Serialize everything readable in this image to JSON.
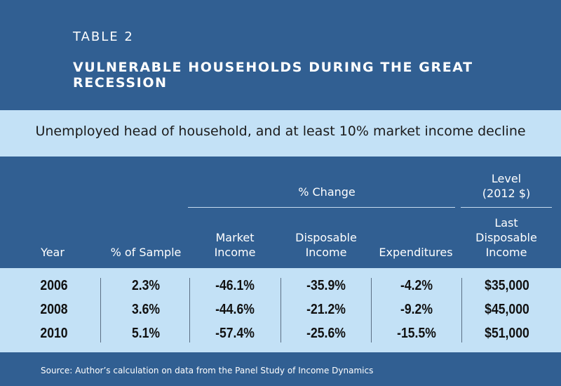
{
  "table": {
    "number": "TABLE 2",
    "title": "VULNERABLE HOUSEHOLDS DURING THE GREAT RECESSION",
    "subtitle": "Unemployed head of household, and at least 10% market income decline",
    "group_headers": {
      "pct_change": "% Change",
      "level_line1": "Level",
      "level_line2": "(2012 $)"
    },
    "columns": {
      "year": "Year",
      "pct_sample": "% of Sample",
      "market_income_1": "Market",
      "market_income_2": "Income",
      "disposable_income_1": "Disposable",
      "disposable_income_2": "Income",
      "expenditures": "Expenditures",
      "last_disp_1": "Last",
      "last_disp_2": "Disposable",
      "last_disp_3": "Income"
    },
    "rows": [
      {
        "year": "2006",
        "pct_sample": "2.3%",
        "market_income": "-46.1%",
        "disposable_income": "-35.9%",
        "expenditures": "-4.2%",
        "last_disposable_income": "$35,000"
      },
      {
        "year": "2008",
        "pct_sample": "3.6%",
        "market_income": "-44.6%",
        "disposable_income": "-21.2%",
        "expenditures": "-9.2%",
        "last_disposable_income": "$45,000"
      },
      {
        "year": "2010",
        "pct_sample": "5.1%",
        "market_income": "-57.4%",
        "disposable_income": "-25.6%",
        "expenditures": "-15.5%",
        "last_disposable_income": "$51,000"
      }
    ],
    "source": "Source: Author’s calculation on data from the Panel Study of Income Dynamics"
  },
  "colors": {
    "frame_background": "#315f92",
    "band_background": "#c3e1f6",
    "header_text": "#ffffff",
    "data_text": "#111111"
  }
}
